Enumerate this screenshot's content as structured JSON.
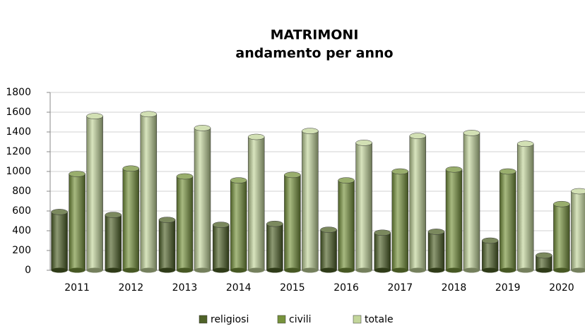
{
  "chart_data": {
    "type": "bar",
    "title": "MATRIMONI",
    "subtitle": "andamento per anno",
    "categories": [
      "2011",
      "2012",
      "2013",
      "2014",
      "2015",
      "2016",
      "2017",
      "2018",
      "2019",
      "2020"
    ],
    "series": [
      {
        "name": "religiosi",
        "color": "#4f6228",
        "values": [
          590,
          560,
          510,
          460,
          470,
          410,
          380,
          390,
          300,
          150
        ]
      },
      {
        "name": "civili",
        "color": "#77933c",
        "values": [
          975,
          1030,
          950,
          910,
          965,
          910,
          1000,
          1020,
          1000,
          670
        ]
      },
      {
        "name": "totale",
        "color": "#c3d69b",
        "values": [
          1560,
          1580,
          1440,
          1350,
          1410,
          1290,
          1360,
          1390,
          1280,
          800
        ]
      }
    ],
    "ylim": [
      0,
      1800
    ],
    "yticks": [
      0,
      200,
      400,
      600,
      800,
      1000,
      1200,
      1400,
      1600,
      1800
    ],
    "grid": true
  }
}
